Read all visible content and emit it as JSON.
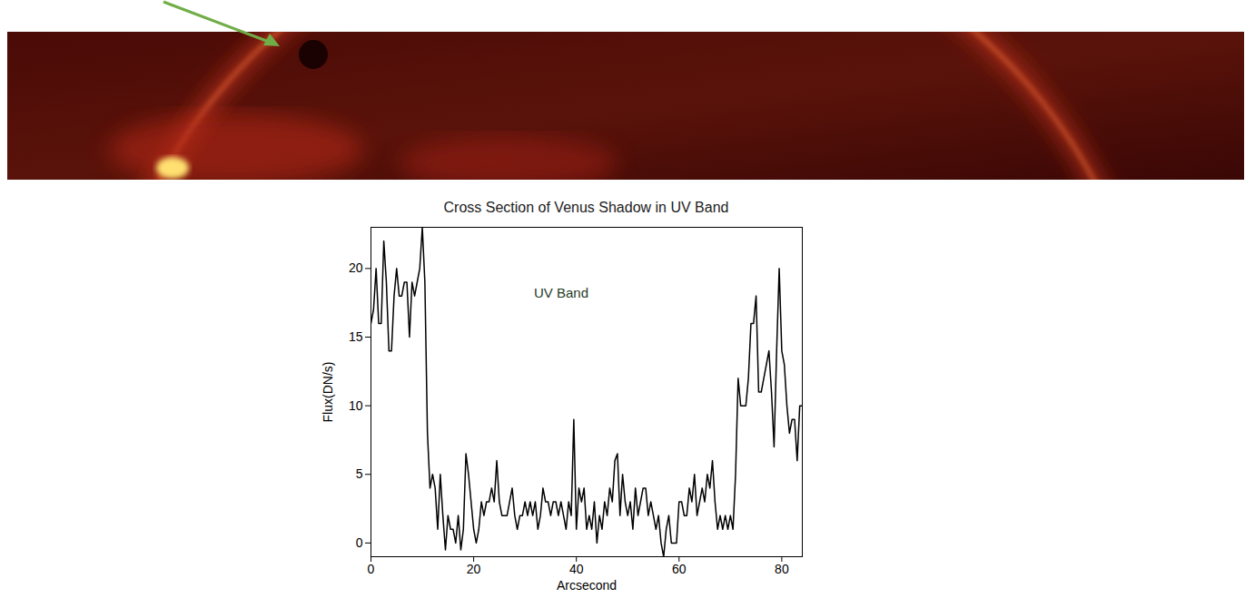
{
  "chart_data": {
    "type": "line",
    "title": "Cross Section of Venus Shadow in UV Band",
    "annotation": "UV Band",
    "x_label": "Arcsecond",
    "y_label": "Flux(DN/s)",
    "color": "#000000",
    "x": [
      0,
      0.5,
      1,
      1.5,
      2,
      2.5,
      3,
      3.5,
      4,
      4.5,
      5,
      5.5,
      6,
      6.5,
      7,
      7.5,
      8,
      8.5,
      9,
      9.5,
      10,
      10.5,
      11,
      11.5,
      12,
      12.5,
      13,
      13.5,
      14,
      14.5,
      15,
      15.5,
      16,
      16.5,
      17,
      17.5,
      18,
      18.5,
      19,
      19.5,
      20,
      20.5,
      21,
      21.5,
      22,
      22.5,
      23,
      23.5,
      24,
      24.5,
      25,
      25.5,
      26,
      26.5,
      27,
      27.5,
      28,
      28.5,
      29,
      29.5,
      30,
      30.5,
      31,
      31.5,
      32,
      32.5,
      33,
      33.5,
      34,
      34.5,
      35,
      35.5,
      36,
      36.5,
      37,
      37.5,
      38,
      38.5,
      39,
      39.5,
      40,
      40.5,
      41,
      41.5,
      42,
      42.5,
      43,
      43.5,
      44,
      44.5,
      45,
      45.5,
      46,
      46.5,
      47,
      47.5,
      48,
      48.5,
      49,
      49.5,
      50,
      50.5,
      51,
      51.5,
      52,
      52.5,
      53,
      53.5,
      54,
      54.5,
      55,
      55.5,
      56,
      56.5,
      57,
      57.5,
      58,
      58.5,
      59,
      59.5,
      60,
      60.5,
      61,
      61.5,
      62,
      62.5,
      63,
      63.5,
      64,
      64.5,
      65,
      65.5,
      66,
      66.5,
      67,
      67.5,
      68,
      68.5,
      69,
      69.5,
      70,
      70.5,
      71,
      71.5,
      72,
      72.5,
      73,
      73.5,
      74,
      74.5,
      75,
      75.5,
      76,
      76.5,
      77,
      77.5,
      78,
      78.5,
      79,
      79.5,
      80,
      80.5,
      81,
      81.5,
      82,
      82.5,
      83,
      83.5,
      84
    ],
    "values": [
      16,
      17,
      20,
      16,
      16,
      22,
      19,
      14,
      14,
      18,
      20,
      18,
      18,
      19,
      19,
      15,
      19,
      18,
      19,
      20,
      23,
      19,
      8,
      4,
      5,
      4,
      1,
      5,
      2,
      -0.5,
      2,
      1,
      1,
      0,
      2,
      -0.5,
      1,
      6.5,
      5,
      3,
      1,
      0,
      1,
      3,
      2,
      3,
      3,
      4,
      3,
      6,
      3,
      2,
      2,
      2,
      3,
      4,
      2,
      1,
      2,
      2,
      3,
      2,
      3,
      2,
      3,
      1,
      2,
      4,
      3,
      3,
      2,
      3,
      3,
      2,
      3,
      2,
      1,
      3,
      2,
      9,
      1,
      4,
      3,
      4,
      1,
      2,
      1,
      3,
      0,
      2,
      1,
      3,
      2,
      4,
      3,
      6,
      6.5,
      2,
      5,
      3,
      2,
      3,
      1,
      4,
      2,
      3,
      4,
      4,
      2,
      3,
      2,
      1,
      2,
      0,
      -1,
      1,
      2,
      0,
      0,
      0,
      3,
      3,
      2,
      2,
      4,
      3,
      5,
      2,
      3,
      4,
      3,
      5,
      4,
      6,
      3,
      1,
      2,
      1,
      2,
      1,
      2,
      1,
      5,
      12,
      10,
      10,
      10,
      12,
      16,
      16,
      18,
      11,
      11,
      12,
      13,
      14,
      11,
      7,
      14,
      20,
      14,
      13,
      10,
      8,
      9,
      9,
      6,
      10,
      10
    ],
    "xlim": [
      0,
      84
    ],
    "ylim": [
      -1,
      23
    ],
    "xticks": [
      0,
      20,
      40,
      60,
      80
    ],
    "yticks": [
      0,
      5,
      10,
      15,
      20
    ],
    "grid": false
  }
}
